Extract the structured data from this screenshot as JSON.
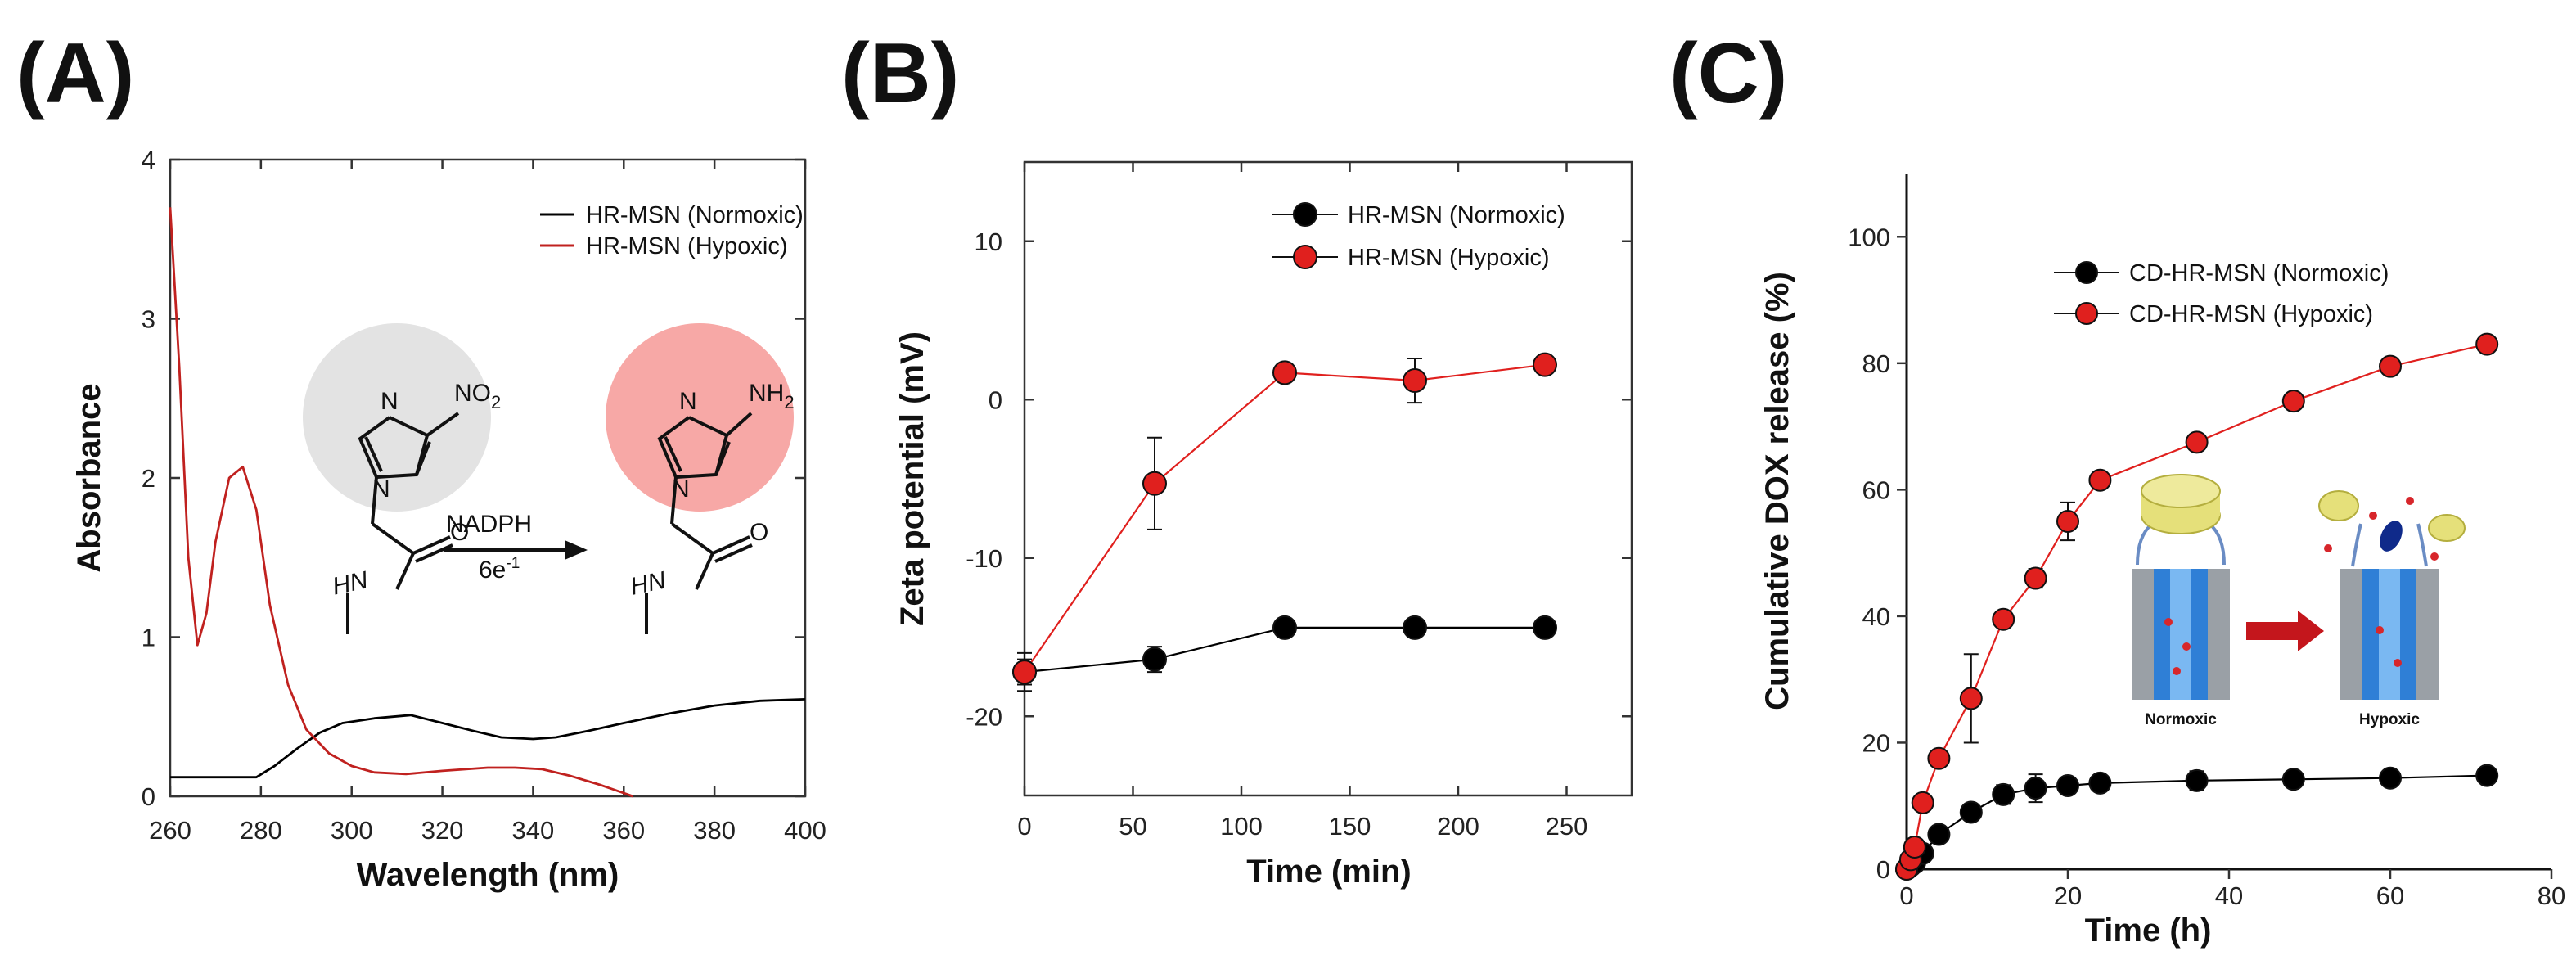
{
  "panels": [
    {
      "id": "A",
      "label": "(A)"
    },
    {
      "id": "B",
      "label": "(B)"
    },
    {
      "id": "C",
      "label": "(C)"
    }
  ],
  "chemistry": {
    "left_nitrogen": "N",
    "left_substituent": "NO",
    "left_substituent_sub": "2",
    "left_hn": "HN",
    "left_oxygen": "O",
    "reagent": "NADPH",
    "electrons": "6e",
    "electrons_sup": "-1",
    "right_nitrogen": "N",
    "right_substituent": "NH",
    "right_substituent_sub": "2",
    "right_hn": "HN",
    "right_oxygen": "O",
    "colors": {
      "left_circle": "#e3e3e3",
      "right_circle": "#f7a8a6"
    }
  },
  "inset_c": {
    "left_label": "Normoxic",
    "right_label": "Hypoxic",
    "colors": {
      "cap": "#e5e07a",
      "pore": "#2f7fd6",
      "cargo": "#d7262b",
      "arrow": "#c4161c"
    }
  },
  "chart_data": [
    {
      "type": "line",
      "panel": "A",
      "xlabel": "Wavelength (nm)",
      "ylabel": "Absorbance",
      "xlim": [
        260,
        400
      ],
      "ylim": [
        0,
        4
      ],
      "xticks": [
        260,
        280,
        300,
        320,
        340,
        360,
        380,
        400
      ],
      "yticks": [
        0,
        1,
        2,
        3,
        4
      ],
      "legend_position": "top-right",
      "series": [
        {
          "name": "HR-MSN (Normoxic)",
          "color": "#000000",
          "x": [
            260,
            270,
            279,
            283,
            288,
            293,
            298,
            305,
            313,
            320,
            327,
            333,
            340,
            345,
            352,
            360,
            370,
            380,
            390,
            400
          ],
          "y": [
            0.12,
            0.12,
            0.12,
            0.19,
            0.3,
            0.4,
            0.46,
            0.49,
            0.51,
            0.46,
            0.41,
            0.37,
            0.36,
            0.37,
            0.41,
            0.46,
            0.52,
            0.57,
            0.6,
            0.61
          ]
        },
        {
          "name": "HR-MSN (Hypoxic)",
          "color": "#c0211f",
          "x": [
            260,
            262,
            264,
            266,
            268,
            270,
            273,
            276,
            279,
            282,
            286,
            290,
            295,
            300,
            305,
            312,
            320,
            330,
            336,
            342,
            348,
            355,
            360,
            362
          ],
          "y": [
            3.7,
            2.7,
            1.5,
            0.95,
            1.15,
            1.6,
            2.0,
            2.07,
            1.8,
            1.2,
            0.7,
            0.42,
            0.27,
            0.19,
            0.15,
            0.14,
            0.16,
            0.18,
            0.18,
            0.17,
            0.13,
            0.07,
            0.02,
            0.0
          ]
        }
      ]
    },
    {
      "type": "line",
      "panel": "B",
      "xlabel": "Time (min)",
      "ylabel": "Zeta potential (mV)",
      "xlim": [
        0,
        280
      ],
      "ylim": [
        -25,
        15
      ],
      "xticks": [
        0,
        50,
        100,
        150,
        200,
        250
      ],
      "yticks": [
        -20,
        -10,
        0,
        10
      ],
      "legend_position": "top-right",
      "series": [
        {
          "name": "HR-MSN (Normoxic)",
          "color": "#000000",
          "x": [
            0,
            60,
            120,
            180,
            240
          ],
          "y": [
            -17.2,
            -16.4,
            -14.4,
            -14.4,
            -14.4
          ],
          "error": [
            1.2,
            0.8,
            0.3,
            0.3,
            0.3
          ]
        },
        {
          "name": "HR-MSN (Hypoxic)",
          "color": "#e0201e",
          "x": [
            0,
            60,
            120,
            180,
            240
          ],
          "y": [
            -17.2,
            -5.3,
            1.7,
            1.2,
            2.2
          ],
          "error": [
            0.8,
            2.9,
            0.3,
            1.4,
            0.3
          ]
        }
      ]
    },
    {
      "type": "line",
      "panel": "C",
      "xlabel": "Time (h)",
      "ylabel": "Cumulative DOX release (%)",
      "xlim": [
        0,
        80
      ],
      "ylim": [
        0,
        110
      ],
      "xticks": [
        0,
        20,
        40,
        60,
        80
      ],
      "yticks": [
        0,
        20,
        40,
        60,
        80,
        100
      ],
      "legend_position": "top-right",
      "series": [
        {
          "name": "CD-HR-MSN (Normoxic)",
          "color": "#000000",
          "x": [
            0,
            0.5,
            1,
            2,
            4,
            8,
            12,
            16,
            20,
            24,
            36,
            48,
            60,
            72
          ],
          "y": [
            0,
            0.5,
            1.0,
            2.5,
            5.5,
            9.0,
            11.8,
            12.8,
            13.2,
            13.6,
            14.0,
            14.2,
            14.4,
            14.8
          ],
          "error": [
            0,
            0,
            0,
            0.5,
            0.8,
            1.2,
            1.5,
            2.2,
            1.2,
            1.0,
            1.5,
            0.8,
            0.5,
            0.8
          ]
        },
        {
          "name": "CD-HR-MSN (Hypoxic)",
          "color": "#e0201e",
          "x": [
            0,
            0.5,
            1,
            2,
            4,
            8,
            12,
            16,
            20,
            24,
            36,
            48,
            60,
            72
          ],
          "y": [
            0,
            1.5,
            3.5,
            10.5,
            17.5,
            27.0,
            39.5,
            46.0,
            55.0,
            61.5,
            67.5,
            74.0,
            79.5,
            83.0
          ],
          "error": [
            0,
            0.3,
            0.5,
            1.0,
            1.2,
            7.0,
            1.0,
            1.5,
            3.0,
            1.0,
            1.0,
            0.5,
            0.5,
            0.5
          ]
        }
      ]
    }
  ]
}
